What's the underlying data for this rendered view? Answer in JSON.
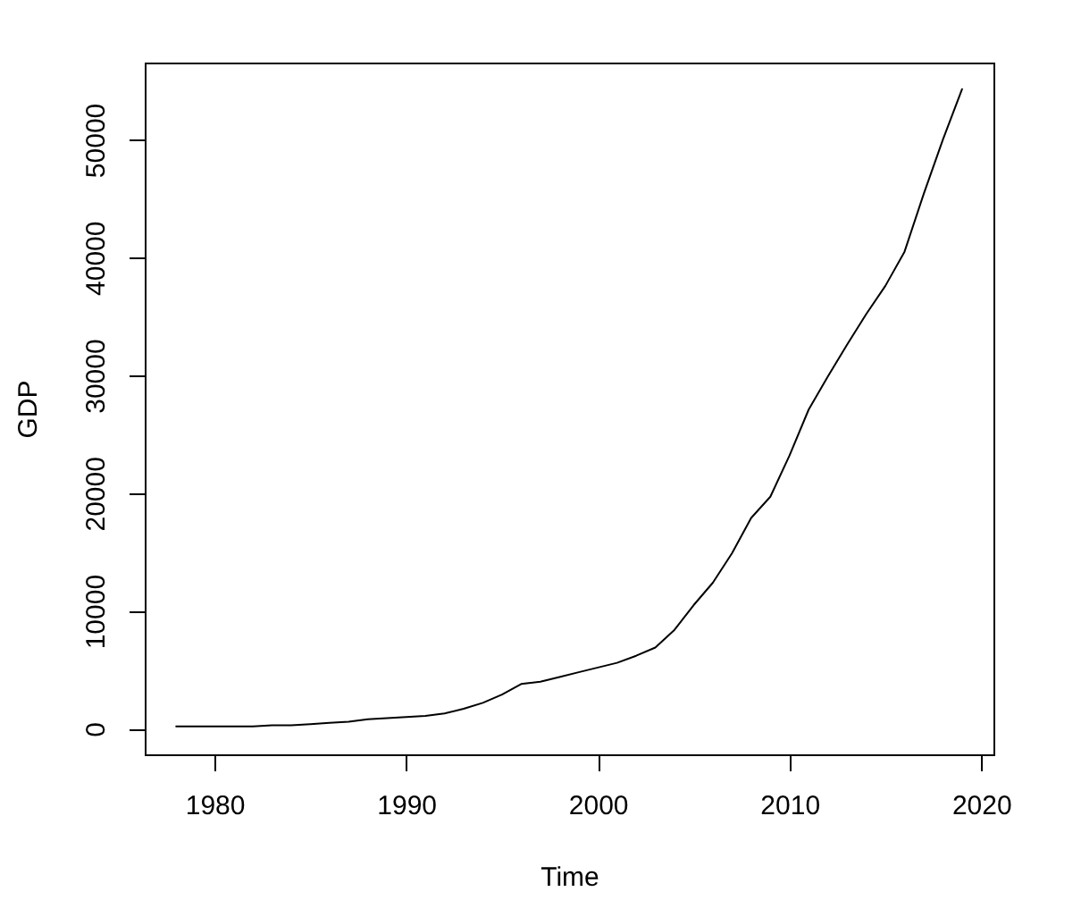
{
  "chart_data": {
    "type": "line",
    "xlabel": "Time",
    "ylabel": "GDP",
    "x": [
      1978,
      1979,
      1980,
      1981,
      1982,
      1983,
      1984,
      1985,
      1986,
      1987,
      1988,
      1989,
      1990,
      1991,
      1992,
      1993,
      1994,
      1995,
      1996,
      1997,
      1998,
      1999,
      2000,
      2001,
      2002,
      2003,
      2004,
      2005,
      2006,
      2007,
      2008,
      2009,
      2010,
      2011,
      2012,
      2013,
      2014,
      2015,
      2016,
      2017,
      2018,
      2019
    ],
    "series": [
      {
        "color": "#000000",
        "values": [
          200,
          200,
          200,
          200,
          200,
          300,
          300,
          400,
          500,
          600,
          800,
          900,
          1000,
          1100,
          1300,
          1700,
          2200,
          2900,
          3800,
          4000,
          4400,
          4800,
          5200,
          5600,
          6200,
          6900,
          8400,
          10500,
          12400,
          14900,
          17900,
          19700,
          23200,
          27100,
          29900,
          32600,
          35200,
          37600,
          40500,
          45400,
          50000,
          54300
        ]
      }
    ],
    "xlim": [
      1976.36,
      2020.64
    ],
    "ylim": [
      -2170,
      56560
    ],
    "xticks": [
      1980,
      1990,
      2000,
      2010,
      2020
    ],
    "yticks": [
      0,
      10000,
      20000,
      30000,
      40000,
      50000
    ]
  }
}
